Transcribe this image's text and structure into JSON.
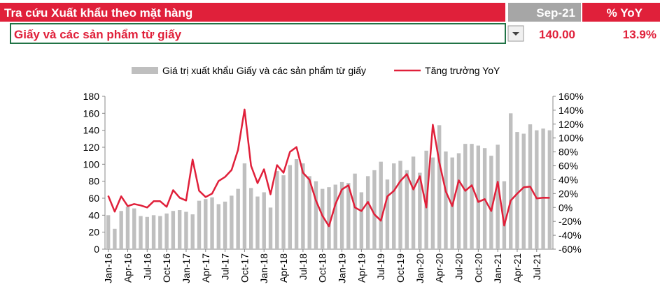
{
  "header": {
    "title": "Tra cứu Xuất khẩu theo mặt hàng",
    "period": "Sep-21",
    "yoy_label": "% YoY"
  },
  "selector": {
    "item": "Giấy và các sản phẩm từ giấy",
    "value": "140.00",
    "yoy": "13.9%"
  },
  "chart_data": {
    "type": "bar",
    "categories": [
      "Jan-16",
      null,
      null,
      "Apr-16",
      null,
      null,
      "Jul-16",
      null,
      null,
      "Oct-16",
      null,
      null,
      "Jan-17",
      null,
      null,
      "Apr-17",
      null,
      null,
      "Jul-17",
      null,
      null,
      "Oct-17",
      null,
      null,
      "Jan-18",
      null,
      null,
      "Apr-18",
      null,
      null,
      "Jul-18",
      null,
      null,
      "Oct-18",
      null,
      null,
      "Jan-19",
      null,
      null,
      "Apr-19",
      null,
      null,
      "Jul-19",
      null,
      null,
      "Oct-19",
      null,
      null,
      "Jan-20",
      null,
      null,
      "Apr-20",
      null,
      null,
      "Jul-20",
      null,
      null,
      "Oct-20",
      null,
      null,
      "Jan-21",
      null,
      null,
      "Apr-21",
      null,
      null,
      "Jul-21",
      null,
      null
    ],
    "series": [
      {
        "name": "Giá trị xuất khẩu Giấy và các sản phẩm từ giấy",
        "type": "bar",
        "color": "#bfbfbf",
        "values": [
          40,
          24,
          45,
          50,
          48,
          39,
          38,
          40,
          39,
          42,
          45,
          46,
          44,
          41,
          57,
          59,
          61,
          53,
          56,
          63,
          71,
          101,
          72,
          62,
          67,
          49,
          92,
          87,
          99,
          106,
          101,
          86,
          80,
          71,
          73,
          76,
          79,
          78,
          89,
          67,
          86,
          93,
          103,
          82,
          101,
          104,
          93,
          109,
          90,
          116,
          108,
          146,
          115,
          108,
          113,
          124,
          124,
          122,
          119,
          110,
          123,
          80,
          160,
          138,
          136,
          147,
          140,
          142,
          140
        ]
      },
      {
        "name": "Tăng trưởng YoY",
        "type": "line",
        "axis": "y2",
        "color": "#e0203a",
        "values": [
          17,
          -6,
          16,
          2,
          5,
          3,
          0,
          9,
          9,
          1,
          25,
          14,
          10,
          69,
          24,
          15,
          20,
          38,
          44,
          54,
          83,
          141,
          60,
          35,
          55,
          19,
          61,
          50,
          80,
          87,
          50,
          40,
          10,
          -12,
          -27,
          5,
          26,
          32,
          0,
          -5,
          8,
          -10,
          -19,
          16,
          24,
          38,
          48,
          26,
          45,
          0,
          119,
          65,
          23,
          2,
          39,
          24,
          32,
          8,
          12,
          -5,
          37,
          -26,
          10,
          20,
          29,
          30,
          13,
          14,
          13.9
        ]
      }
    ],
    "ylim": [
      0,
      180
    ],
    "yticks": [
      0,
      20,
      40,
      60,
      80,
      100,
      120,
      140,
      160,
      180
    ],
    "y2lim": [
      -60,
      160
    ],
    "y2ticks": [
      {
        "value": -60,
        "label": "-60%"
      },
      {
        "value": -40,
        "label": "-40%"
      },
      {
        "value": -20,
        "label": "-20%"
      },
      {
        "value": 0,
        "label": "0%"
      },
      {
        "value": 20,
        "label": "20%"
      },
      {
        "value": 40,
        "label": "40%"
      },
      {
        "value": 60,
        "label": "60%"
      },
      {
        "value": 80,
        "label": "80%"
      },
      {
        "value": 100,
        "label": "100%"
      },
      {
        "value": 120,
        "label": "120%"
      },
      {
        "value": 140,
        "label": "140%"
      },
      {
        "value": 160,
        "label": "160%"
      }
    ],
    "legend": "top"
  }
}
